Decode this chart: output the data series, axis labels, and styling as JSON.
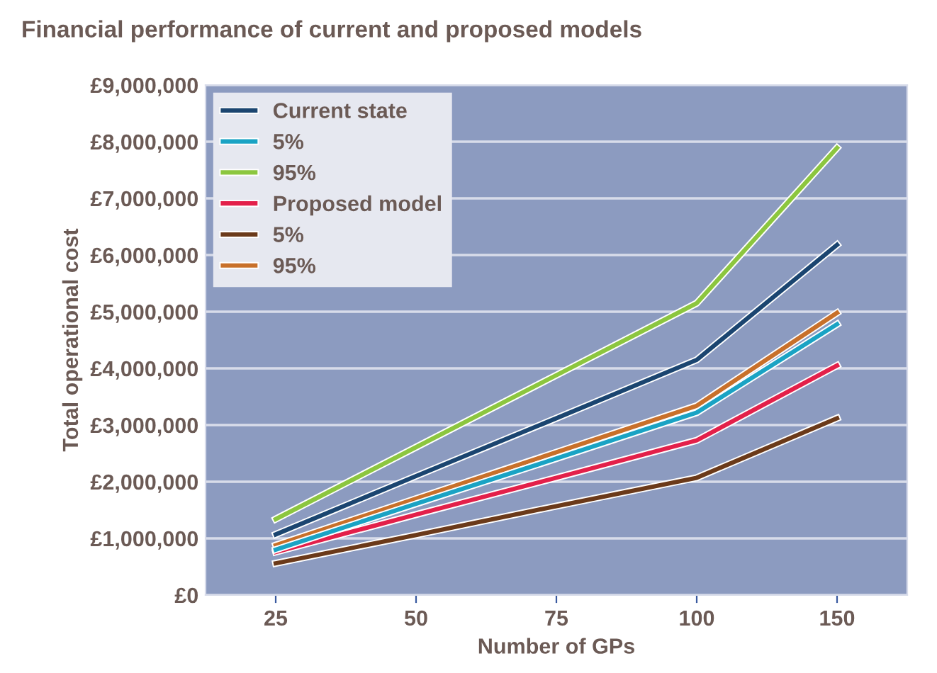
{
  "chart_data": {
    "type": "line",
    "title": "Financial performance of current and proposed models",
    "xlabel": "Number of GPs",
    "ylabel": "Total operational cost",
    "categories": [
      "25",
      "50",
      "75",
      "100",
      "150"
    ],
    "series": [
      {
        "name": "Current state",
        "color": "#1b4570",
        "values": [
          1070000,
          2100000,
          3120000,
          4150000,
          6180000
        ]
      },
      {
        "name": "5%",
        "color": "#1aa3c4",
        "values": [
          800000,
          1610000,
          2410000,
          3220000,
          4780000
        ]
      },
      {
        "name": "95%",
        "color": "#8cc63f",
        "values": [
          1340000,
          2610000,
          3880000,
          5150000,
          7890000
        ]
      },
      {
        "name": "Proposed model",
        "color": "#e3204a",
        "values": [
          760000,
          1420000,
          2070000,
          2730000,
          4050000
        ]
      },
      {
        "name": "5%",
        "color": "#6b3a1a",
        "values": [
          560000,
          1060000,
          1570000,
          2070000,
          3120000
        ]
      },
      {
        "name": "95%",
        "color": "#c8702a",
        "values": [
          880000,
          1700000,
          2520000,
          3340000,
          4980000
        ]
      }
    ],
    "ylim": [
      0,
      9000000
    ],
    "yticks": [
      {
        "value": 0,
        "label": "£0"
      },
      {
        "value": 1000000,
        "label": "£1,000,000"
      },
      {
        "value": 2000000,
        "label": "£2,000,000"
      },
      {
        "value": 3000000,
        "label": "£3,000,000"
      },
      {
        "value": 4000000,
        "label": "£4,000,000"
      },
      {
        "value": 5000000,
        "label": "£5,000,000"
      },
      {
        "value": 6000000,
        "label": "£6,000,000"
      },
      {
        "value": 7000000,
        "label": "£7,000,000"
      },
      {
        "value": 8000000,
        "label": "£8,000,000"
      },
      {
        "value": 9000000,
        "label": "£9,000,000"
      }
    ],
    "grid": "y",
    "legend": "top left",
    "marker": "none",
    "line_style": "solid"
  }
}
